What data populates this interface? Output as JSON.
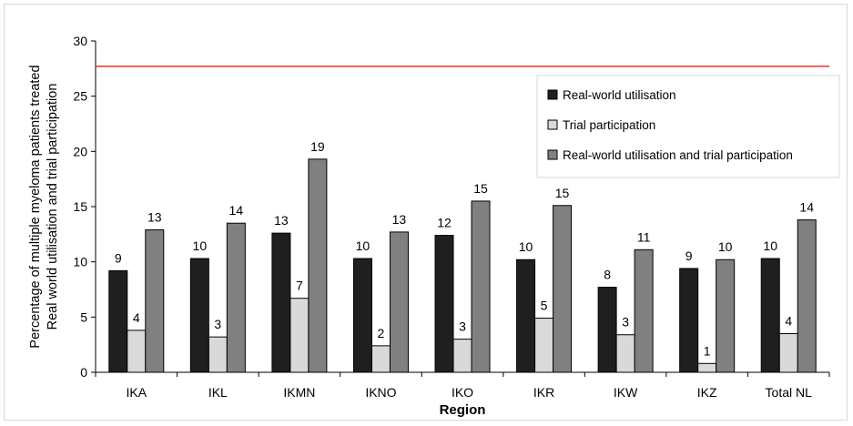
{
  "chart_data": {
    "type": "bar",
    "title": "",
    "xlabel": "Region",
    "ylabel_lines": [
      "Percentage of multiple myeloma patients treated",
      "Real world utilisation  and trial participation"
    ],
    "categories": [
      "IKA",
      "IKL",
      "IKMN",
      "IKNO",
      "IKO",
      "IKR",
      "IKW",
      "IKZ",
      "Total NL"
    ],
    "ylim": [
      0,
      30
    ],
    "yticks": [
      0,
      5,
      10,
      15,
      20,
      25,
      30
    ],
    "grid": false,
    "legend_position": "right",
    "reference_line": {
      "value": 27.7,
      "color": "#e8302a"
    },
    "series": [
      {
        "name": "Real-world utilisation",
        "color": "#1f1f1f",
        "values": [
          9.2,
          10.3,
          12.6,
          10.3,
          12.4,
          10.2,
          7.7,
          9.4,
          10.3
        ],
        "labels": [
          "9",
          "10",
          "13",
          "10",
          "12",
          "10",
          "8",
          "9",
          "10"
        ]
      },
      {
        "name": "Trial participation",
        "color": "#d9d9d9",
        "values": [
          3.8,
          3.2,
          6.7,
          2.4,
          3.0,
          4.9,
          3.4,
          0.8,
          3.5
        ],
        "labels": [
          "4",
          "3",
          "7",
          "2",
          "3",
          "5",
          "3",
          "1",
          "4"
        ]
      },
      {
        "name": "Real-world utilisation and trial participation",
        "color": "#808080",
        "values": [
          12.9,
          13.5,
          19.3,
          12.7,
          15.5,
          15.1,
          11.1,
          10.2,
          13.8
        ],
        "labels": [
          "13",
          "14",
          "19",
          "13",
          "15",
          "15",
          "11",
          "10",
          "14"
        ]
      }
    ]
  }
}
